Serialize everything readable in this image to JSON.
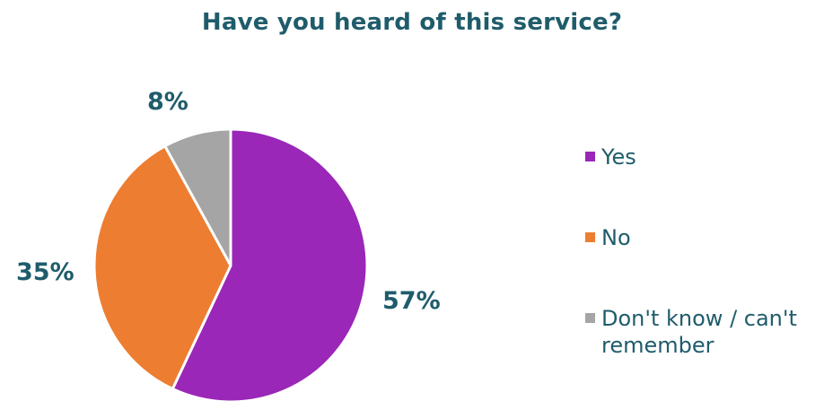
{
  "chart_data": {
    "type": "pie",
    "title": "Have you heard of this service?",
    "categories": [
      "Yes",
      "No",
      "Don't know / can't remember"
    ],
    "values": [
      57,
      35,
      8
    ],
    "value_labels": [
      "57%",
      "35%",
      "8%"
    ],
    "colors": [
      "#9a27b7",
      "#ed7d31",
      "#a5a5a5"
    ],
    "legend_position": "right"
  }
}
